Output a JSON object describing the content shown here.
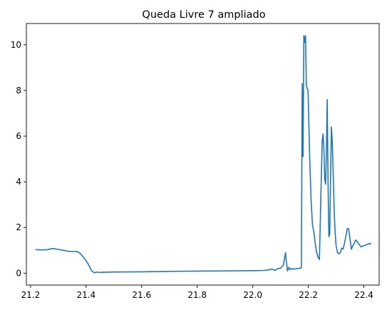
{
  "chart_data": {
    "type": "line",
    "title": "Queda Livre 7 ampliado",
    "xlabel": "",
    "ylabel": "",
    "xlim": [
      21.185,
      22.455
    ],
    "ylim": [
      -0.52,
      10.93
    ],
    "xticks": [
      21.2,
      21.4,
      21.6,
      21.8,
      22.0,
      22.2,
      22.4
    ],
    "xtick_labels": [
      "21.2",
      "21.4",
      "21.6",
      "21.8",
      "22.0",
      "22.2",
      "22.4"
    ],
    "yticks": [
      0,
      2,
      4,
      6,
      8,
      10
    ],
    "ytick_labels": [
      "0",
      "2",
      "4",
      "6",
      "8",
      "10"
    ],
    "grid": false,
    "line_color": "#1f77b4",
    "series": [
      {
        "x": [
          21.22,
          21.24,
          21.26,
          21.28,
          21.3,
          21.32,
          21.34,
          21.36,
          21.37,
          21.38,
          21.39,
          21.4,
          21.41,
          21.42,
          21.43,
          21.44,
          21.45,
          21.46,
          21.5,
          21.6,
          21.7,
          21.8,
          21.9,
          22.0,
          22.04,
          22.06,
          22.07,
          22.08,
          22.09,
          22.1,
          22.11,
          22.118,
          22.12,
          22.125,
          22.13,
          22.135,
          22.14,
          22.15,
          22.16,
          22.17,
          22.175,
          22.178,
          22.181,
          22.184,
          22.187,
          22.19,
          22.193,
          22.196,
          22.199,
          22.205,
          22.21,
          22.215,
          22.22,
          22.225,
          22.23,
          22.235,
          22.24,
          22.245,
          22.25,
          22.253,
          22.256,
          22.259,
          22.262,
          22.265,
          22.268,
          22.271,
          22.274,
          22.277,
          22.28,
          22.283,
          22.286,
          22.29,
          22.293,
          22.296,
          22.3,
          22.305,
          22.31,
          22.315,
          22.32,
          22.325,
          22.33,
          22.335,
          22.34,
          22.345,
          22.35,
          22.355,
          22.36,
          22.365,
          22.37,
          22.375,
          22.38,
          22.39,
          22.4,
          22.41,
          22.42,
          22.425
        ],
        "y": [
          1.03,
          1.02,
          1.03,
          1.08,
          1.04,
          1.0,
          0.95,
          0.95,
          0.94,
          0.85,
          0.7,
          0.55,
          0.35,
          0.1,
          0.02,
          0.05,
          0.03,
          0.04,
          0.05,
          0.06,
          0.08,
          0.09,
          0.1,
          0.11,
          0.12,
          0.15,
          0.18,
          0.12,
          0.2,
          0.22,
          0.35,
          0.9,
          0.6,
          0.1,
          0.25,
          0.15,
          0.2,
          0.18,
          0.2,
          0.22,
          0.25,
          8.3,
          5.1,
          10.4,
          10.1,
          10.4,
          8.2,
          8.1,
          8.0,
          5.0,
          3.2,
          2.1,
          1.8,
          1.3,
          0.9,
          0.7,
          0.6,
          3.3,
          5.8,
          6.1,
          5.5,
          4.1,
          3.9,
          5.2,
          7.6,
          4.0,
          1.6,
          1.7,
          4.0,
          6.4,
          5.8,
          4.2,
          2.8,
          1.9,
          1.2,
          0.9,
          0.85,
          0.9,
          1.1,
          1.05,
          1.3,
          1.6,
          1.95,
          1.95,
          1.5,
          1.05,
          1.2,
          1.3,
          1.45,
          1.4,
          1.3,
          1.15,
          1.2,
          1.25,
          1.3,
          1.28
        ]
      }
    ]
  }
}
